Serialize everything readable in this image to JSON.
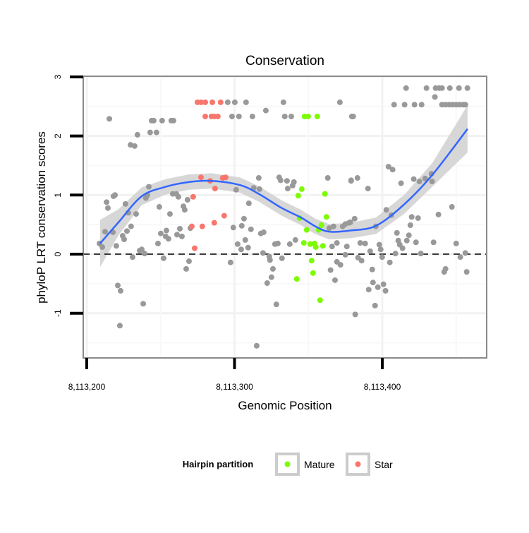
{
  "chart_data": {
    "type": "scatter",
    "title": "Conservation",
    "xlabel": "Genomic Position",
    "ylabel": "phyloP LRT conservation scores",
    "x_base": 8113200,
    "x_note": "point x values are offsets (bp) from x_base",
    "xlim_offset": [
      -6,
      265
    ],
    "ylim": [
      -1.75,
      3
    ],
    "x_ticks": [
      0,
      100,
      200
    ],
    "x_tick_labels": [
      "8,113,200",
      "8,113,300",
      "8,113,400"
    ],
    "y_ticks": [
      -1,
      0,
      1,
      2,
      3
    ],
    "y_tick_labels": [
      "-1",
      "0",
      "1",
      "2",
      "3"
    ],
    "reference_line": {
      "y": 0,
      "style": "dashed"
    },
    "grid": true,
    "legend": {
      "title": "Hairpin partition",
      "placement": "bottom",
      "entries": [
        {
          "label": "Mature",
          "color": "#7CFC00"
        },
        {
          "label": "Star",
          "color": "#F8766D"
        }
      ]
    },
    "colors": {
      "other": "#999999",
      "Mature": "#7CFC00",
      "Star": "#F8766D",
      "smooth": "#3366FF",
      "ci": "#D3D3D3"
    },
    "series": [
      {
        "name": "Other",
        "points": [
          [
            8.6,
            0.18
          ],
          [
            10.5,
            0.12
          ],
          [
            15.3,
            2.29
          ],
          [
            13.4,
            0.88
          ],
          [
            14.3,
            0.78
          ],
          [
            12.4,
            0.38
          ],
          [
            17.7,
            0.37
          ],
          [
            18.1,
            0.98
          ],
          [
            19.1,
            1.0
          ],
          [
            20,
            0.14
          ],
          [
            21,
            -0.53
          ],
          [
            22.9,
            -0.62
          ],
          [
            22.4,
            -1.21
          ],
          [
            24.3,
            0.31
          ],
          [
            25.3,
            0.25
          ],
          [
            26.2,
            0.85
          ],
          [
            27.2,
            0.39
          ],
          [
            30,
            0.47
          ],
          [
            28.1,
            0.7
          ],
          [
            33.4,
            0.68
          ],
          [
            29.6,
            1.85
          ],
          [
            32.4,
            1.83
          ],
          [
            34.3,
            2.02
          ],
          [
            31,
            -0.05
          ],
          [
            35.8,
            0.06
          ],
          [
            37.2,
            0.08
          ],
          [
            39.1,
            0.01
          ],
          [
            38.2,
            -0.84
          ],
          [
            42,
            1.14
          ],
          [
            41,
            1.0
          ],
          [
            40,
            0.95
          ],
          [
            43.9,
            2.26
          ],
          [
            45.3,
            2.26
          ],
          [
            42.9,
            2.06
          ],
          [
            47.2,
            2.06
          ],
          [
            48.2,
            0.18
          ],
          [
            49.1,
            0.8
          ],
          [
            50.1,
            0.35
          ],
          [
            51,
            2.26
          ],
          [
            52,
            -0.07
          ],
          [
            53.4,
            0.3
          ],
          [
            53.9,
            0.4
          ],
          [
            55.3,
            0.26
          ],
          [
            56.3,
            0.68
          ],
          [
            57.2,
            2.26
          ],
          [
            58.7,
            2.26
          ],
          [
            58.2,
            1.02
          ],
          [
            60.6,
            1.02
          ],
          [
            62,
            0.97
          ],
          [
            61.1,
            0.33
          ],
          [
            64.4,
            0.3
          ],
          [
            63,
            0.43
          ],
          [
            65.4,
            0.81
          ],
          [
            66.3,
            0.75
          ],
          [
            68.2,
            0.92
          ],
          [
            69.2,
            -0.12
          ],
          [
            67.3,
            -0.25
          ],
          [
            70.1,
            0.44
          ],
          [
            95.4,
            2.57
          ],
          [
            100.2,
            2.57
          ],
          [
            107.8,
            2.57
          ],
          [
            133.1,
            2.57
          ],
          [
            171.3,
            2.57
          ],
          [
            98.3,
            2.33
          ],
          [
            103,
            2.33
          ],
          [
            112.1,
            2.33
          ],
          [
            134,
            2.33
          ],
          [
            138.4,
            2.33
          ],
          [
            179.4,
            2.33
          ],
          [
            121.2,
            2.43
          ],
          [
            116.4,
            1.29
          ],
          [
            101.1,
            1.09
          ],
          [
            113,
            1.12
          ],
          [
            116.9,
            1.1
          ],
          [
            109.7,
            0.86
          ],
          [
            130.2,
            1.3
          ],
          [
            131.2,
            1.25
          ],
          [
            135.5,
            1.24
          ],
          [
            140.2,
            1.22
          ],
          [
            139.3,
            1.16
          ],
          [
            136,
            1.11
          ],
          [
            163.1,
            1.29
          ],
          [
            178.9,
            1.24
          ],
          [
            106.4,
            0.6
          ],
          [
            99.2,
            0.45
          ],
          [
            104.9,
            0.48
          ],
          [
            111.1,
            0.42
          ],
          [
            117.8,
            0.35
          ],
          [
            119.7,
            0.37
          ],
          [
            107.3,
            0.24
          ],
          [
            102.1,
            0.17
          ],
          [
            104.5,
            0.08
          ],
          [
            109.2,
            0.11
          ],
          [
            97.3,
            -0.14
          ],
          [
            119.3,
            0.02
          ],
          [
            123.5,
            -0.04
          ],
          [
            124,
            -0.1
          ],
          [
            126,
            -0.25
          ],
          [
            125,
            -0.39
          ],
          [
            122.1,
            -0.49
          ],
          [
            128.3,
            -0.85
          ],
          [
            115,
            -1.55
          ],
          [
            127.4,
            0.17
          ],
          [
            129.3,
            0.18
          ],
          [
            132.1,
            -0.07
          ],
          [
            137.4,
            0.17
          ],
          [
            141.2,
            0.24
          ],
          [
            164.1,
            0.44
          ],
          [
            167,
            0.47
          ],
          [
            173.2,
            0.47
          ],
          [
            175,
            0.51
          ],
          [
            178.4,
            0.54
          ],
          [
            166,
            0.13
          ],
          [
            169.3,
            0.19
          ],
          [
            176,
            0.13
          ],
          [
            175,
            -0.01
          ],
          [
            169.3,
            -0.13
          ],
          [
            171.7,
            -0.18
          ],
          [
            165,
            -0.27
          ],
          [
            168,
            -0.44
          ],
          [
            216.1,
            2.81
          ],
          [
            229.9,
            2.81
          ],
          [
            236.1,
            2.81
          ],
          [
            238.5,
            2.81
          ],
          [
            240.4,
            2.81
          ],
          [
            245.7,
            2.81
          ],
          [
            251.9,
            2.81
          ],
          [
            257.6,
            2.81
          ],
          [
            235.6,
            2.66
          ],
          [
            208,
            2.53
          ],
          [
            215.1,
            2.53
          ],
          [
            221.8,
            2.53
          ],
          [
            226.6,
            2.53
          ],
          [
            240.4,
            2.53
          ],
          [
            242.8,
            2.53
          ],
          [
            245.2,
            2.53
          ],
          [
            247.6,
            2.53
          ],
          [
            250,
            2.53
          ],
          [
            252.3,
            2.53
          ],
          [
            254.7,
            2.53
          ],
          [
            256.2,
            2.53
          ],
          [
            180.3,
            2.33
          ],
          [
            204.2,
            1.48
          ],
          [
            207,
            1.43
          ],
          [
            178.9,
            1.25
          ],
          [
            183.2,
            1.29
          ],
          [
            190.3,
            1.11
          ],
          [
            212.7,
            1.2
          ],
          [
            221.3,
            1.27
          ],
          [
            225.1,
            1.23
          ],
          [
            229,
            1.28
          ],
          [
            233.3,
            1.36
          ],
          [
            233.7,
            1.23
          ],
          [
            247.1,
            0.8
          ],
          [
            238,
            0.67
          ],
          [
            202.7,
            0.75
          ],
          [
            206.1,
            0.66
          ],
          [
            219.9,
            0.63
          ],
          [
            224.2,
            0.61
          ],
          [
            219,
            0.49
          ],
          [
            195.6,
            0.47
          ],
          [
            177.5,
            0.53
          ],
          [
            181.3,
            0.6
          ],
          [
            209.9,
            0.36
          ],
          [
            218,
            0.32
          ],
          [
            210.8,
            0.23
          ],
          [
            216.6,
            0.23
          ],
          [
            211.8,
            0.16
          ],
          [
            213.7,
            0.1
          ],
          [
            222.8,
            0.2
          ],
          [
            234.7,
            0.2
          ],
          [
            250,
            0.18
          ],
          [
            185.1,
            0.19
          ],
          [
            188.4,
            0.18
          ],
          [
            198,
            0.16
          ],
          [
            198.9,
            0.08
          ],
          [
            191.8,
            0.05
          ],
          [
            208.9,
            0.01
          ],
          [
            226.1,
            0.01
          ],
          [
            256.2,
            0.02
          ],
          [
            252.8,
            -0.05
          ],
          [
            199.9,
            -0.05
          ],
          [
            183.6,
            -0.06
          ],
          [
            186,
            -0.11
          ],
          [
            205.1,
            -0.14
          ],
          [
            193.2,
            -0.26
          ],
          [
            242.8,
            -0.25
          ],
          [
            241.9,
            -0.3
          ],
          [
            257.1,
            -0.3
          ],
          [
            193.7,
            -0.48
          ],
          [
            200.8,
            -0.51
          ],
          [
            190.8,
            -0.6
          ],
          [
            197,
            -0.56
          ],
          [
            202.2,
            -0.62
          ],
          [
            195.1,
            -0.87
          ],
          [
            181.7,
            -1.02
          ]
        ]
      },
      {
        "name": "Star",
        "points": [
          [
            74.9,
            2.57
          ],
          [
            77.3,
            2.57
          ],
          [
            80.2,
            2.57
          ],
          [
            85,
            2.57
          ],
          [
            90.6,
            2.57
          ],
          [
            80.2,
            2.33
          ],
          [
            84.4,
            2.33
          ],
          [
            88.7,
            2.33
          ],
          [
            86.3,
            2.33
          ],
          [
            72,
            0.97
          ],
          [
            71.1,
            0.47
          ],
          [
            78.2,
            0.47
          ],
          [
            86.3,
            0.53
          ],
          [
            73,
            0.1
          ],
          [
            77.3,
            1.3
          ],
          [
            83.5,
            1.24
          ],
          [
            86.8,
            1.11
          ],
          [
            92,
            1.29
          ],
          [
            93,
            0.65
          ],
          [
            94,
            1.3
          ]
        ]
      },
      {
        "name": "Mature",
        "points": [
          [
            147.4,
            2.33
          ],
          [
            149.8,
            2.33
          ],
          [
            156,
            2.33
          ],
          [
            145.5,
            1.1
          ],
          [
            143.1,
            0.99
          ],
          [
            161.2,
            1.02
          ],
          [
            162.2,
            0.63
          ],
          [
            144,
            0.61
          ],
          [
            158.8,
            0.49
          ],
          [
            148.8,
            0.41
          ],
          [
            156.9,
            0.41
          ],
          [
            146.9,
            0.19
          ],
          [
            151.2,
            0.17
          ],
          [
            154.1,
            0.18
          ],
          [
            155,
            0.12
          ],
          [
            159.8,
            0.14
          ],
          [
            152.2,
            -0.11
          ],
          [
            153.1,
            -0.32
          ],
          [
            142.1,
            -0.42
          ],
          [
            157.9,
            -0.78
          ]
        ]
      }
    ],
    "smooth": {
      "method": "loess",
      "x": [
        9,
        21.5,
        37.2,
        53.4,
        69.2,
        84.5,
        103.6,
        116.4,
        132,
        145,
        154.7,
        164,
        178.5,
        195.7,
        214.7,
        233.8,
        257.7
      ],
      "y": [
        0.18,
        0.54,
        0.98,
        1.14,
        1.22,
        1.24,
        1.17,
        1.02,
        0.78,
        0.62,
        0.47,
        0.38,
        0.4,
        0.48,
        0.84,
        1.34,
        2.12
      ],
      "ci_half_width": [
        0.4,
        0.22,
        0.15,
        0.13,
        0.13,
        0.13,
        0.13,
        0.13,
        0.13,
        0.13,
        0.13,
        0.13,
        0.13,
        0.14,
        0.16,
        0.2,
        0.4
      ]
    }
  }
}
